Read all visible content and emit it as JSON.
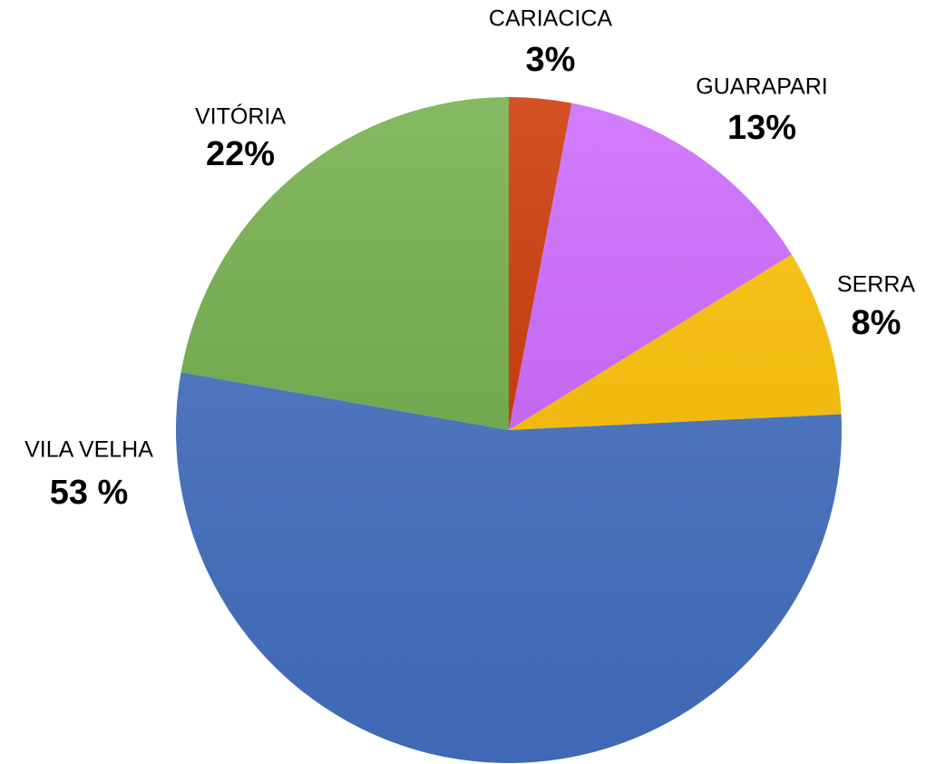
{
  "chart_data": {
    "type": "pie",
    "categories": [
      "CARIACICA",
      "GUARAPARI",
      "SERRA",
      "VILA VELHA",
      "VITÓRIA"
    ],
    "values": [
      3,
      13,
      8,
      53,
      22
    ],
    "value_labels": [
      "3%",
      "13%",
      "8%",
      "53 %",
      "22%"
    ],
    "colors": [
      "#cc3300",
      "#cc66ff",
      "#ffc000",
      "#4472c4",
      "#70ad47"
    ]
  }
}
